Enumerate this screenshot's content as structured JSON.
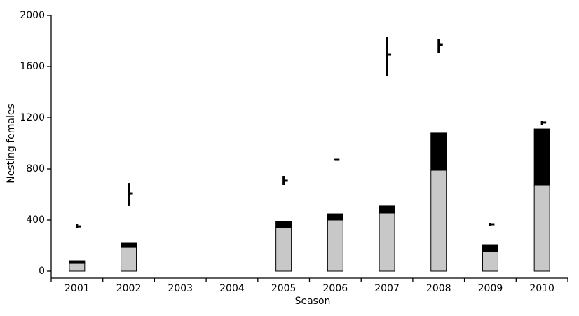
{
  "chart_data": {
    "type": "bar",
    "stacked": true,
    "x_label": "Season",
    "y_label": "Nesting females",
    "categories": [
      "2001",
      "2002",
      "2003",
      "2004",
      "2005",
      "2006",
      "2007",
      "2008",
      "2009",
      "2010"
    ],
    "series": [
      {
        "color": "#c8c8c8",
        "values": [
          60,
          186,
          null,
          null,
          340,
          400,
          455,
          789,
          153,
          674
        ]
      },
      {
        "color": "#000000",
        "values": [
          22,
          33,
          null,
          null,
          49,
          49,
          55,
          291,
          55,
          438
        ]
      }
    ],
    "ranges": {
      "color": "#000000",
      "values": [
        350,
        608,
        null,
        null,
        707,
        871,
        1693,
        1770,
        367,
        1162
      ],
      "lower": [
        335,
        510,
        null,
        null,
        674,
        866,
        1523,
        1704,
        351,
        1145
      ],
      "upper": [
        367,
        690,
        null,
        null,
        745,
        877,
        1830,
        1819,
        378,
        1178
      ]
    },
    "ylim": [
      0,
      2000
    ],
    "yticks": [
      0,
      400,
      800,
      1200,
      1600,
      2000
    ],
    "grid": false
  }
}
